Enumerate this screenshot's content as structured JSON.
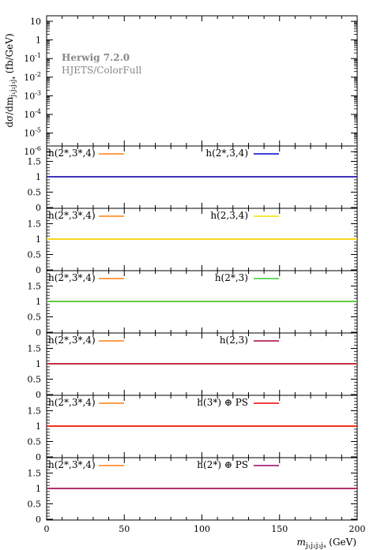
{
  "chart_data": {
    "type": "line",
    "x_axis": {
      "range": [
        0,
        200
      ],
      "ticks": [
        "0",
        "50",
        "100",
        "150",
        "200"
      ],
      "label": "m_{j1j2j3j4} (GeV)"
    },
    "top_panel": {
      "y_axis": {
        "scale": "log",
        "label": "dσ/dm_{j1j2j3j4} (fb/GeV)",
        "ticks": [
          "10",
          "1",
          "10^-1",
          "10^-2",
          "10^-3",
          "10^-4",
          "10^-5",
          "10^-6"
        ]
      },
      "annotation": {
        "generator": "Herwig 7.2.0",
        "analysis": "HJETS/ColorFull"
      },
      "series": []
    },
    "ratio_panels": [
      {
        "reference": {
          "label": "h(2*,3*,4)",
          "color": "#ff7f0e"
        },
        "comparison": {
          "label": "h(2*,3,4)",
          "color": "#0000cc"
        },
        "y_range": [
          0,
          2
        ],
        "y_ticks": [
          "0",
          "0.5",
          "1",
          "1.5"
        ],
        "x": [
          0,
          200
        ],
        "ratio": [
          1,
          1
        ]
      },
      {
        "reference": {
          "label": "h(2*,3*,4)",
          "color": "#ff7f0e"
        },
        "comparison": {
          "label": "h(2,3,4)",
          "color": "#f0e000"
        },
        "y_range": [
          0,
          2
        ],
        "y_ticks": [
          "0",
          "0.5",
          "1",
          "1.5"
        ],
        "x": [
          0,
          200
        ],
        "ratio": [
          1,
          1
        ]
      },
      {
        "reference": {
          "label": "h(2*,3*,4)",
          "color": "#ff7f0e"
        },
        "comparison": {
          "label": "h(2*,3)",
          "color": "#33cc33"
        },
        "y_range": [
          0,
          2
        ],
        "y_ticks": [
          "0",
          "0.5",
          "1",
          "1.5"
        ],
        "x": [
          0,
          200
        ],
        "ratio": [
          1,
          1
        ]
      },
      {
        "reference": {
          "label": "h(2*,3*,4)",
          "color": "#ff7f0e"
        },
        "comparison": {
          "label": "h(2,3)",
          "color": "#aa0033"
        },
        "y_range": [
          0,
          2
        ],
        "y_ticks": [
          "0",
          "0.5",
          "1",
          "1.5"
        ],
        "x": [
          0,
          200
        ],
        "ratio": [
          1,
          1
        ]
      },
      {
        "reference": {
          "label": "h(2*,3*,4)",
          "color": "#ff7f0e"
        },
        "comparison": {
          "label": "h(3*) ⊕ PS",
          "color": "#ee0000"
        },
        "y_range": [
          0,
          2
        ],
        "y_ticks": [
          "0",
          "0.5",
          "1",
          "1.5"
        ],
        "x": [
          0,
          200
        ],
        "ratio": [
          1,
          1
        ]
      },
      {
        "reference": {
          "label": "h(2*,3*,4)",
          "color": "#ff7f0e"
        },
        "comparison": {
          "label": "h(2*) ⊕ PS",
          "color": "#990066"
        },
        "y_range": [
          0,
          2
        ],
        "y_ticks": [
          "0",
          "0.5",
          "1",
          "1.5"
        ],
        "x": [
          0,
          200
        ],
        "ratio": [
          1,
          1
        ]
      }
    ]
  }
}
